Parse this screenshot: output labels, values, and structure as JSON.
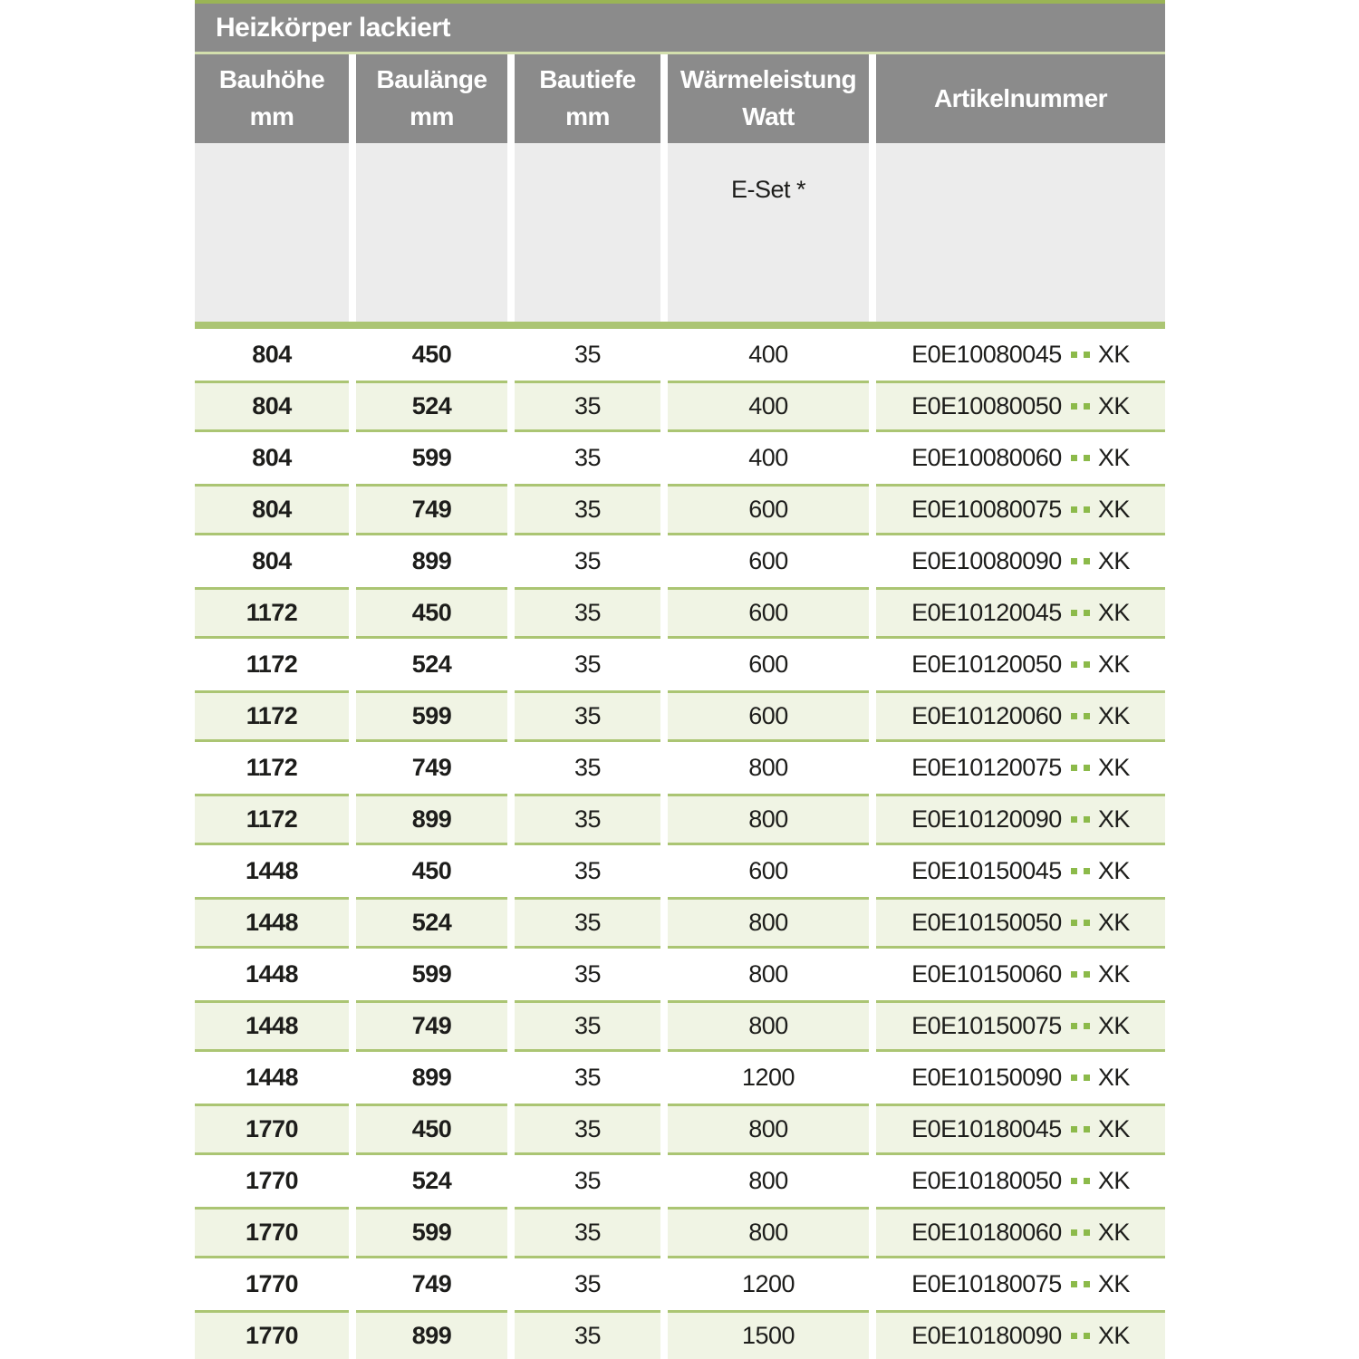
{
  "table": {
    "title": "Heizkörper lackiert",
    "headers": {
      "col1": {
        "line1": "Bauhöhe",
        "line2": "mm"
      },
      "col2": {
        "line1": "Baulänge",
        "line2": "mm"
      },
      "col3": {
        "line1": "Bautiefe",
        "line2": "mm"
      },
      "col4": {
        "line1": "Wärmeleistung",
        "line2": "Watt"
      },
      "col5": {
        "line1": "Artikelnummer"
      }
    },
    "subheader": {
      "eset_label": "E-Set *"
    },
    "rows": [
      {
        "bauhoehe": "804",
        "baulaenge": "450",
        "bautiefe": "35",
        "watt": "400",
        "artikel": "E0E10080045",
        "artikel_suffix": "XK"
      },
      {
        "bauhoehe": "804",
        "baulaenge": "524",
        "bautiefe": "35",
        "watt": "400",
        "artikel": "E0E10080050",
        "artikel_suffix": "XK"
      },
      {
        "bauhoehe": "804",
        "baulaenge": "599",
        "bautiefe": "35",
        "watt": "400",
        "artikel": "E0E10080060",
        "artikel_suffix": "XK"
      },
      {
        "bauhoehe": "804",
        "baulaenge": "749",
        "bautiefe": "35",
        "watt": "600",
        "artikel": "E0E10080075",
        "artikel_suffix": "XK"
      },
      {
        "bauhoehe": "804",
        "baulaenge": "899",
        "bautiefe": "35",
        "watt": "600",
        "artikel": "E0E10080090",
        "artikel_suffix": "XK"
      },
      {
        "bauhoehe": "1172",
        "baulaenge": "450",
        "bautiefe": "35",
        "watt": "600",
        "artikel": "E0E10120045",
        "artikel_suffix": "XK"
      },
      {
        "bauhoehe": "1172",
        "baulaenge": "524",
        "bautiefe": "35",
        "watt": "600",
        "artikel": "E0E10120050",
        "artikel_suffix": "XK"
      },
      {
        "bauhoehe": "1172",
        "baulaenge": "599",
        "bautiefe": "35",
        "watt": "600",
        "artikel": "E0E10120060",
        "artikel_suffix": "XK"
      },
      {
        "bauhoehe": "1172",
        "baulaenge": "749",
        "bautiefe": "35",
        "watt": "800",
        "artikel": "E0E10120075",
        "artikel_suffix": "XK"
      },
      {
        "bauhoehe": "1172",
        "baulaenge": "899",
        "bautiefe": "35",
        "watt": "800",
        "artikel": "E0E10120090",
        "artikel_suffix": "XK"
      },
      {
        "bauhoehe": "1448",
        "baulaenge": "450",
        "bautiefe": "35",
        "watt": "600",
        "artikel": "E0E10150045",
        "artikel_suffix": "XK"
      },
      {
        "bauhoehe": "1448",
        "baulaenge": "524",
        "bautiefe": "35",
        "watt": "800",
        "artikel": "E0E10150050",
        "artikel_suffix": "XK"
      },
      {
        "bauhoehe": "1448",
        "baulaenge": "599",
        "bautiefe": "35",
        "watt": "800",
        "artikel": "E0E10150060",
        "artikel_suffix": "XK"
      },
      {
        "bauhoehe": "1448",
        "baulaenge": "749",
        "bautiefe": "35",
        "watt": "800",
        "artikel": "E0E10150075",
        "artikel_suffix": "XK"
      },
      {
        "bauhoehe": "1448",
        "baulaenge": "899",
        "bautiefe": "35",
        "watt": "1200",
        "artikel": "E0E10150090",
        "artikel_suffix": "XK"
      },
      {
        "bauhoehe": "1770",
        "baulaenge": "450",
        "bautiefe": "35",
        "watt": "800",
        "artikel": "E0E10180045",
        "artikel_suffix": "XK"
      },
      {
        "bauhoehe": "1770",
        "baulaenge": "524",
        "bautiefe": "35",
        "watt": "800",
        "artikel": "E0E10180050",
        "artikel_suffix": "XK"
      },
      {
        "bauhoehe": "1770",
        "baulaenge": "599",
        "bautiefe": "35",
        "watt": "800",
        "artikel": "E0E10180060",
        "artikel_suffix": "XK"
      },
      {
        "bauhoehe": "1770",
        "baulaenge": "749",
        "bautiefe": "35",
        "watt": "1200",
        "artikel": "E0E10180075",
        "artikel_suffix": "XK"
      },
      {
        "bauhoehe": "1770",
        "baulaenge": "899",
        "bautiefe": "35",
        "watt": "1500",
        "artikel": "E0E10180090",
        "artikel_suffix": "XK"
      }
    ],
    "colors": {
      "header_gray": "#8b8b8b",
      "accent_green_top": "#9ab455",
      "title_separator_green": "#d3dfad",
      "divider_bar_green": "#abc573",
      "row_green_background": "#f0f4e4",
      "row_border_green": "#abc573",
      "dot_green": "#8cba4a",
      "subheader_gray": "#ececec",
      "header_text": "#ffffff",
      "body_text": "#1d1d1b"
    }
  }
}
